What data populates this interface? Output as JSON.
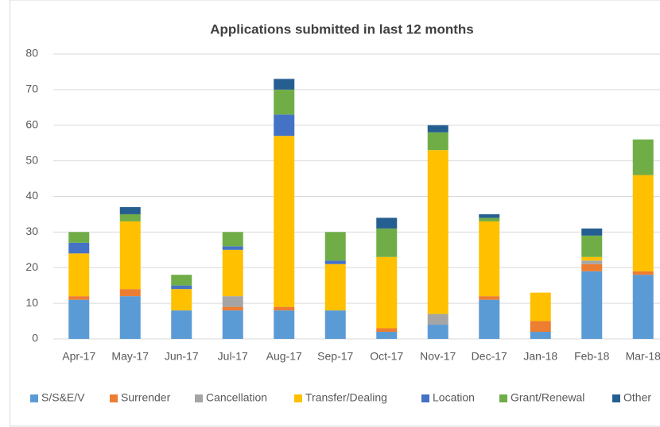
{
  "chart_data": {
    "type": "stacked_bar",
    "title": "Applications submitted in last 12 months",
    "categories": [
      "Apr-17",
      "May-17",
      "Jun-17",
      "Jul-17",
      "Aug-17",
      "Sep-17",
      "Oct-17",
      "Nov-17",
      "Dec-17",
      "Jan-18",
      "Feb-18",
      "Mar-18"
    ],
    "series": [
      {
        "name": "S/S&E/V",
        "color": "#5b9bd5",
        "values": [
          11,
          12,
          8,
          8,
          8,
          8,
          2,
          4,
          11,
          2,
          19,
          18
        ]
      },
      {
        "name": "Surrender",
        "color": "#ed7d31",
        "values": [
          1,
          2,
          0,
          1,
          1,
          0,
          1,
          0,
          1,
          3,
          2,
          1
        ]
      },
      {
        "name": "Cancellation",
        "color": "#a5a5a5",
        "values": [
          0,
          0,
          0,
          3,
          0,
          0,
          0,
          3,
          0,
          0,
          1,
          0
        ]
      },
      {
        "name": "Transfer/Dealing",
        "color": "#ffc000",
        "values": [
          12,
          19,
          6,
          13,
          48,
          13,
          20,
          46,
          21,
          8,
          1,
          27
        ]
      },
      {
        "name": "Location",
        "color": "#4472c4",
        "values": [
          3,
          0,
          1,
          1,
          6,
          1,
          0,
          0,
          0,
          0,
          0,
          0
        ]
      },
      {
        "name": "Grant/Renewal",
        "color": "#70ad47",
        "values": [
          3,
          2,
          3,
          4,
          7,
          8,
          8,
          5,
          1,
          0,
          6,
          10
        ]
      },
      {
        "name": "Other",
        "color": "#255e91",
        "values": [
          0,
          2,
          0,
          0,
          3,
          0,
          3,
          2,
          1,
          0,
          2,
          0
        ]
      }
    ],
    "ylim": [
      0,
      80
    ],
    "yticks": [
      0,
      10,
      20,
      30,
      40,
      50,
      60,
      70,
      80
    ],
    "grid": true,
    "legend": "bottom"
  }
}
